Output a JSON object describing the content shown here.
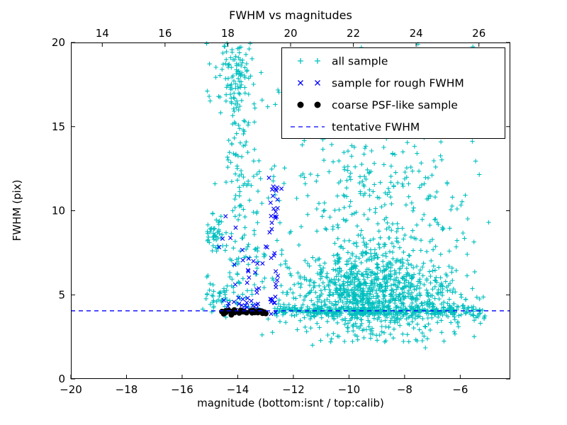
{
  "seed": 12345,
  "chart_data": {
    "type": "scatter",
    "title": "FWHM vs magnitudes",
    "xlabel": "magnitude (bottom:isnt / top:calib)",
    "ylabel": "FWHM (pix)",
    "xlim": [
      -20,
      -4.2
    ],
    "ylim": [
      0,
      20
    ],
    "top_xlim": [
      13.0,
      27.0
    ],
    "x_ticks": [
      -20,
      -18,
      -16,
      -14,
      -12,
      -10,
      -8,
      -6
    ],
    "y_ticks": [
      0,
      5,
      10,
      15,
      20
    ],
    "top_ticks": [
      14,
      16,
      18,
      20,
      22,
      24,
      26
    ],
    "grid": false,
    "legend_position": "upper right",
    "series": [
      {
        "name": "all sample",
        "marker": "plus",
        "color": "#00bfbf",
        "clusters": [
          {
            "n": 850,
            "cx": -9.4,
            "sx": 1.35,
            "cy": 5.0,
            "sy": 1.3,
            "ymin": 2.2
          },
          {
            "n": 260,
            "cx": -9.2,
            "sx": 1.7,
            "cy": 9.5,
            "sy": 2.8,
            "ymin": 2.0
          },
          {
            "n": 300,
            "x0": -12.7,
            "x1": -6.2,
            "cy": 4.05,
            "sy": 0.16
          },
          {
            "n": 45,
            "x0": -6.4,
            "x1": -5.1,
            "cy": 4.0,
            "sy": 0.3
          },
          {
            "n": 130,
            "cx": -14.05,
            "sx": 0.22,
            "y0": 4.2,
            "y1": 20
          },
          {
            "n": 70,
            "cx": -14.2,
            "sx": 0.5,
            "cy": 18.2,
            "sy": 1.1
          },
          {
            "n": 45,
            "cx": -14.78,
            "sx": 0.18,
            "cy": 8.7,
            "sy": 0.6
          },
          {
            "n": 40,
            "cx": -14.7,
            "sx": 0.22,
            "cy": 4.7,
            "sy": 0.5
          },
          {
            "n": 130,
            "x0": -13.6,
            "x1": -5.4,
            "y0": 2.0,
            "y1": 20
          },
          {
            "n": 80,
            "cx": -6.9,
            "sx": 0.7,
            "cy": 4.5,
            "sy": 0.9
          },
          {
            "n": 50,
            "cx": -13.4,
            "sx": 0.3,
            "y0": 5,
            "y1": 14
          },
          {
            "n": 50,
            "cx": -9.8,
            "sx": 1.2,
            "cy": 13.5,
            "sy": 1.8
          }
        ]
      },
      {
        "name": "sample for rough FWHM",
        "marker": "x",
        "color": "#0000ff",
        "clusters": [
          {
            "n": 26,
            "cx": -12.72,
            "sx": 0.12,
            "y0": 4.0,
            "y1": 12.0
          },
          {
            "n": 28,
            "x0": -14.55,
            "x1": -12.6,
            "cy": 4.35,
            "sy": 0.3
          },
          {
            "n": 14,
            "cx": -13.2,
            "sx": 0.45,
            "cy": 5.9,
            "sy": 0.9
          },
          {
            "n": 8,
            "cx": -14.1,
            "sx": 0.4,
            "cy": 7.9,
            "sy": 0.9
          },
          {
            "n": 6,
            "cx": -12.65,
            "sx": 0.1,
            "cy": 11.3,
            "sy": 0.5
          }
        ]
      },
      {
        "name": "coarse PSF-like sample",
        "marker": "dot",
        "color": "#000000",
        "clusters": [
          {
            "n": 30,
            "x0": -14.75,
            "x1": -12.95,
            "cy": 4.0,
            "sy": 0.07
          }
        ]
      }
    ],
    "line": {
      "name": "tentative FWHM",
      "color": "#0000ff",
      "style": "dashed",
      "y": 4.05
    }
  }
}
